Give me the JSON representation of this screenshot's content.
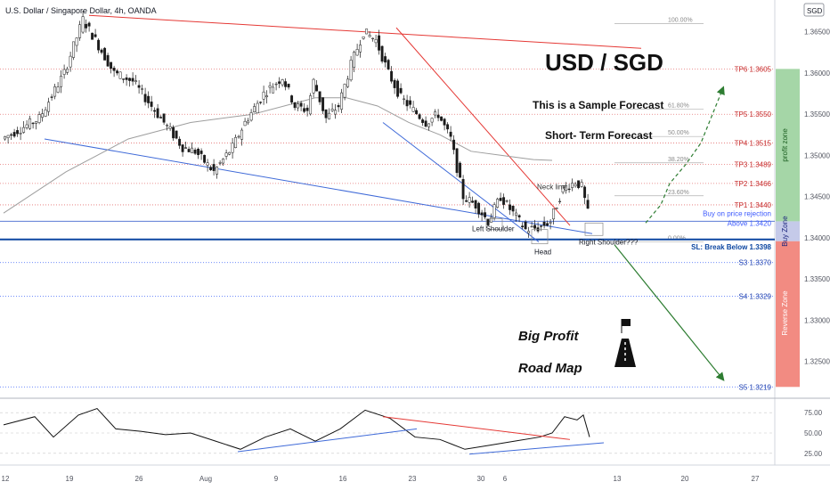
{
  "header": {
    "title": "U.S. Dollar / Singapore Dollar, 4h, OANDA",
    "currency_badge": "SGD"
  },
  "annotations": {
    "pair": "USD / SGD",
    "sample": "This is a Sample Forecast",
    "short_term": "Short- Term Forecast",
    "neck_line": "Neck line",
    "left_shoulder": "Left Shoulder",
    "head": "Head",
    "right_shoulder": "Right Shoulder???",
    "buy_rejection": "Buy on price rejection",
    "above": "Above 1.3420",
    "sl": "SL: Break Below 1.3398",
    "big_profit": "Big Profit",
    "road_map": "Road Map",
    "profit_zone": "profit zone",
    "buy_zone": "Buy Zone",
    "reverse_zone": "Reverse Zone"
  },
  "chart_data": {
    "type": "candlestick",
    "title": "U.S. Dollar / Singapore Dollar, 4h, OANDA",
    "ylim": [
      1.3215,
      1.368
    ],
    "y_ticks": [
      "1.36500",
      "1.36000",
      "1.35500",
      "1.35000",
      "1.34500",
      "1.34000",
      "1.33500",
      "1.33000",
      "1.32500"
    ],
    "x_ticks": [
      "12",
      "19",
      "26",
      "Aug",
      "9",
      "16",
      "23",
      "30",
      "6",
      "13",
      "20",
      "27"
    ],
    "fib_levels": [
      {
        "label": "100.00%",
        "value": 1.366
      },
      {
        "label": "61.80%",
        "value": 1.3556
      },
      {
        "label": "50.00%",
        "value": 1.3523
      },
      {
        "label": "38.20%",
        "value": 1.3491
      },
      {
        "label": "23.60%",
        "value": 1.3451
      },
      {
        "label": "0.00%",
        "value": 1.3395
      }
    ],
    "targets": [
      {
        "label": "TP6 1.3605",
        "value": 1.3605
      },
      {
        "label": "TP5 1.3550",
        "value": 1.355
      },
      {
        "label": "TP4 1.3515",
        "value": 1.3515
      },
      {
        "label": "TP3 1.3489",
        "value": 1.3489
      },
      {
        "label": "TP2 1.3466",
        "value": 1.3466
      },
      {
        "label": "TP1 1.3440",
        "value": 1.344
      }
    ],
    "supports": [
      {
        "label": "S3 1.3370",
        "value": 1.337
      },
      {
        "label": "S4 1.3329",
        "value": 1.3329
      },
      {
        "label": "S5 1.3219",
        "value": 1.3219
      }
    ],
    "buy_level": 1.342,
    "stop_loss": 1.3398,
    "price_path": [
      [
        0,
        1.352
      ],
      [
        6,
        1.3545
      ],
      [
        10,
        1.36
      ],
      [
        13,
        1.3665
      ],
      [
        15,
        1.364
      ],
      [
        18,
        1.36
      ],
      [
        21,
        1.359
      ],
      [
        24,
        1.356
      ],
      [
        27,
        1.353
      ],
      [
        29,
        1.351
      ],
      [
        31,
        1.3505
      ],
      [
        34,
        1.348
      ],
      [
        37,
        1.351
      ],
      [
        39,
        1.354
      ],
      [
        42,
        1.3575
      ],
      [
        45,
        1.3595
      ],
      [
        47,
        1.356
      ],
      [
        49,
        1.3555
      ],
      [
        50,
        1.359
      ],
      [
        52,
        1.3545
      ],
      [
        54,
        1.356
      ],
      [
        56,
        1.361
      ],
      [
        58,
        1.365
      ],
      [
        60,
        1.364
      ],
      [
        62,
        1.36
      ],
      [
        64,
        1.357
      ],
      [
        66,
        1.3555
      ],
      [
        68,
        1.354
      ],
      [
        70,
        1.355
      ],
      [
        72,
        1.352
      ],
      [
        74,
        1.345
      ],
      [
        76,
        1.344
      ],
      [
        78,
        1.342
      ],
      [
        80,
        1.345
      ],
      [
        82,
        1.343
      ],
      [
        84,
        1.341
      ],
      [
        86,
        1.3412
      ],
      [
        88,
        1.342
      ],
      [
        90,
        1.346
      ],
      [
        92,
        1.3468
      ],
      [
        93,
        1.3462
      ],
      [
        94,
        1.343
      ]
    ],
    "ma_path": [
      [
        0,
        1.343
      ],
      [
        10,
        1.348
      ],
      [
        20,
        1.352
      ],
      [
        30,
        1.354
      ],
      [
        40,
        1.355
      ],
      [
        50,
        1.357
      ],
      [
        55,
        1.357
      ],
      [
        60,
        1.356
      ],
      [
        65,
        1.354
      ],
      [
        70,
        1.3525
      ],
      [
        75,
        1.3505
      ],
      [
        80,
        1.35
      ],
      [
        85,
        1.3495
      ],
      [
        88,
        1.3494
      ]
    ],
    "oscillator": {
      "y_ticks": [
        "75.00",
        "50.00",
        "25.00"
      ],
      "ylim": [
        15,
        85
      ],
      "path": [
        [
          0,
          60
        ],
        [
          5,
          70
        ],
        [
          8,
          45
        ],
        [
          12,
          72
        ],
        [
          15,
          80
        ],
        [
          18,
          55
        ],
        [
          22,
          52
        ],
        [
          26,
          48
        ],
        [
          30,
          50
        ],
        [
          34,
          40
        ],
        [
          38,
          30
        ],
        [
          42,
          45
        ],
        [
          46,
          55
        ],
        [
          50,
          40
        ],
        [
          54,
          55
        ],
        [
          58,
          78
        ],
        [
          62,
          68
        ],
        [
          66,
          45
        ],
        [
          70,
          42
        ],
        [
          74,
          30
        ],
        [
          78,
          35
        ],
        [
          82,
          40
        ],
        [
          86,
          45
        ],
        [
          88,
          50
        ],
        [
          90,
          70
        ],
        [
          92,
          66
        ],
        [
          93,
          72
        ],
        [
          94,
          45
        ]
      ]
    }
  }
}
